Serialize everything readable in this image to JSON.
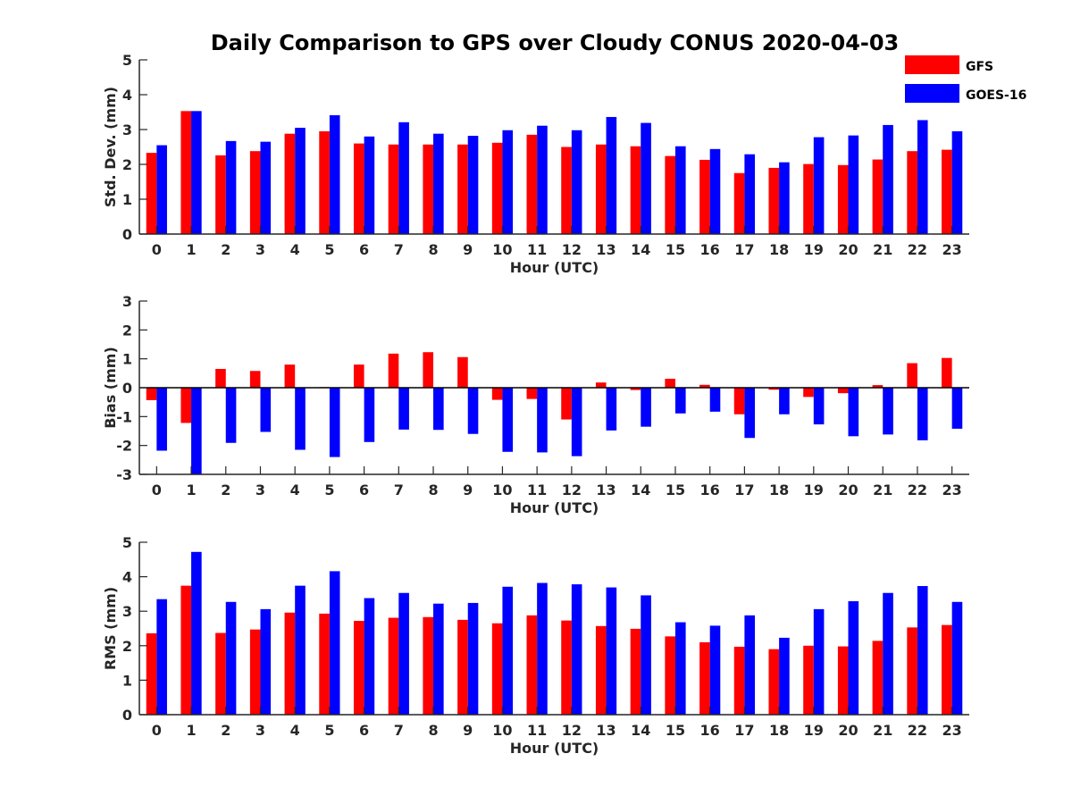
{
  "title": "Daily Comparison to GPS over Cloudy CONUS 2020-04-03",
  "legend": [
    {
      "name": "GFS",
      "color": "#ff0000"
    },
    {
      "name": "GOES-16",
      "color": "#0000ff"
    }
  ],
  "chart_data": [
    {
      "type": "bar",
      "xlabel": "Hour (UTC)",
      "ylabel": "Std. Dev. (mm)",
      "ylim": [
        0,
        5
      ],
      "yticks": [
        0,
        1,
        2,
        3,
        4,
        5
      ],
      "categories": [
        "0",
        "1",
        "2",
        "3",
        "4",
        "5",
        "6",
        "7",
        "8",
        "9",
        "10",
        "11",
        "12",
        "13",
        "14",
        "15",
        "16",
        "17",
        "18",
        "19",
        "20",
        "21",
        "22",
        "23"
      ],
      "series": [
        {
          "name": "GFS",
          "color": "#ff0000",
          "values": [
            2.33,
            3.53,
            2.26,
            2.38,
            2.88,
            2.95,
            2.6,
            2.57,
            2.57,
            2.57,
            2.62,
            2.85,
            2.5,
            2.57,
            2.52,
            2.24,
            2.13,
            1.75,
            1.9,
            2.01,
            1.98,
            2.14,
            2.38,
            2.42
          ]
        },
        {
          "name": "GOES-16",
          "color": "#0000ff",
          "values": [
            2.55,
            3.53,
            2.67,
            2.65,
            3.05,
            3.41,
            2.8,
            3.21,
            2.88,
            2.82,
            2.98,
            3.11,
            2.98,
            3.36,
            3.19,
            2.52,
            2.44,
            2.29,
            2.06,
            2.78,
            2.83,
            3.13,
            3.27,
            2.95
          ]
        }
      ],
      "grid": false
    },
    {
      "type": "bar",
      "xlabel": "Hour (UTC)",
      "ylabel": "Bias (mm)",
      "ylim": [
        -3,
        3
      ],
      "yticks": [
        -3,
        -2,
        -1,
        0,
        1,
        2,
        3
      ],
      "zero_line": true,
      "categories": [
        "0",
        "1",
        "2",
        "3",
        "4",
        "5",
        "6",
        "7",
        "8",
        "9",
        "10",
        "11",
        "12",
        "13",
        "14",
        "15",
        "16",
        "17",
        "18",
        "19",
        "20",
        "21",
        "22",
        "23"
      ],
      "series": [
        {
          "name": "GFS",
          "color": "#ff0000",
          "values": [
            -0.43,
            -1.22,
            0.65,
            0.58,
            0.8,
            0.02,
            0.8,
            1.18,
            1.23,
            1.06,
            -0.42,
            -0.39,
            -1.1,
            0.18,
            -0.08,
            0.31,
            0.1,
            -0.92,
            -0.07,
            -0.32,
            -0.19,
            0.09,
            0.85,
            1.03
          ]
        },
        {
          "name": "GOES-16",
          "color": "#0000ff",
          "values": [
            -2.18,
            -3.0,
            -1.91,
            -1.53,
            -2.15,
            -2.4,
            -1.88,
            -1.45,
            -1.46,
            -1.6,
            -2.22,
            -2.24,
            -2.37,
            -1.48,
            -1.35,
            -0.89,
            -0.83,
            -1.74,
            -0.92,
            -1.27,
            -1.68,
            -1.62,
            -1.82,
            -1.42
          ]
        }
      ],
      "grid": false
    },
    {
      "type": "bar",
      "xlabel": "Hour (UTC)",
      "ylabel": "RMS (mm)",
      "ylim": [
        0,
        5
      ],
      "yticks": [
        0,
        1,
        2,
        3,
        4,
        5
      ],
      "categories": [
        "0",
        "1",
        "2",
        "3",
        "4",
        "5",
        "6",
        "7",
        "8",
        "9",
        "10",
        "11",
        "12",
        "13",
        "14",
        "15",
        "16",
        "17",
        "18",
        "19",
        "20",
        "21",
        "22",
        "23"
      ],
      "series": [
        {
          "name": "GFS",
          "color": "#ff0000",
          "values": [
            2.36,
            3.74,
            2.37,
            2.47,
            2.96,
            2.93,
            2.72,
            2.81,
            2.83,
            2.75,
            2.65,
            2.88,
            2.73,
            2.57,
            2.49,
            2.27,
            2.1,
            1.97,
            1.9,
            2.0,
            1.98,
            2.14,
            2.53,
            2.6
          ]
        },
        {
          "name": "GOES-16",
          "color": "#0000ff",
          "values": [
            3.35,
            4.72,
            3.27,
            3.06,
            3.74,
            4.16,
            3.38,
            3.53,
            3.22,
            3.24,
            3.71,
            3.82,
            3.78,
            3.69,
            3.46,
            2.68,
            2.58,
            2.88,
            2.23,
            3.06,
            3.29,
            3.53,
            3.73,
            3.27
          ]
        }
      ],
      "grid": false
    }
  ]
}
